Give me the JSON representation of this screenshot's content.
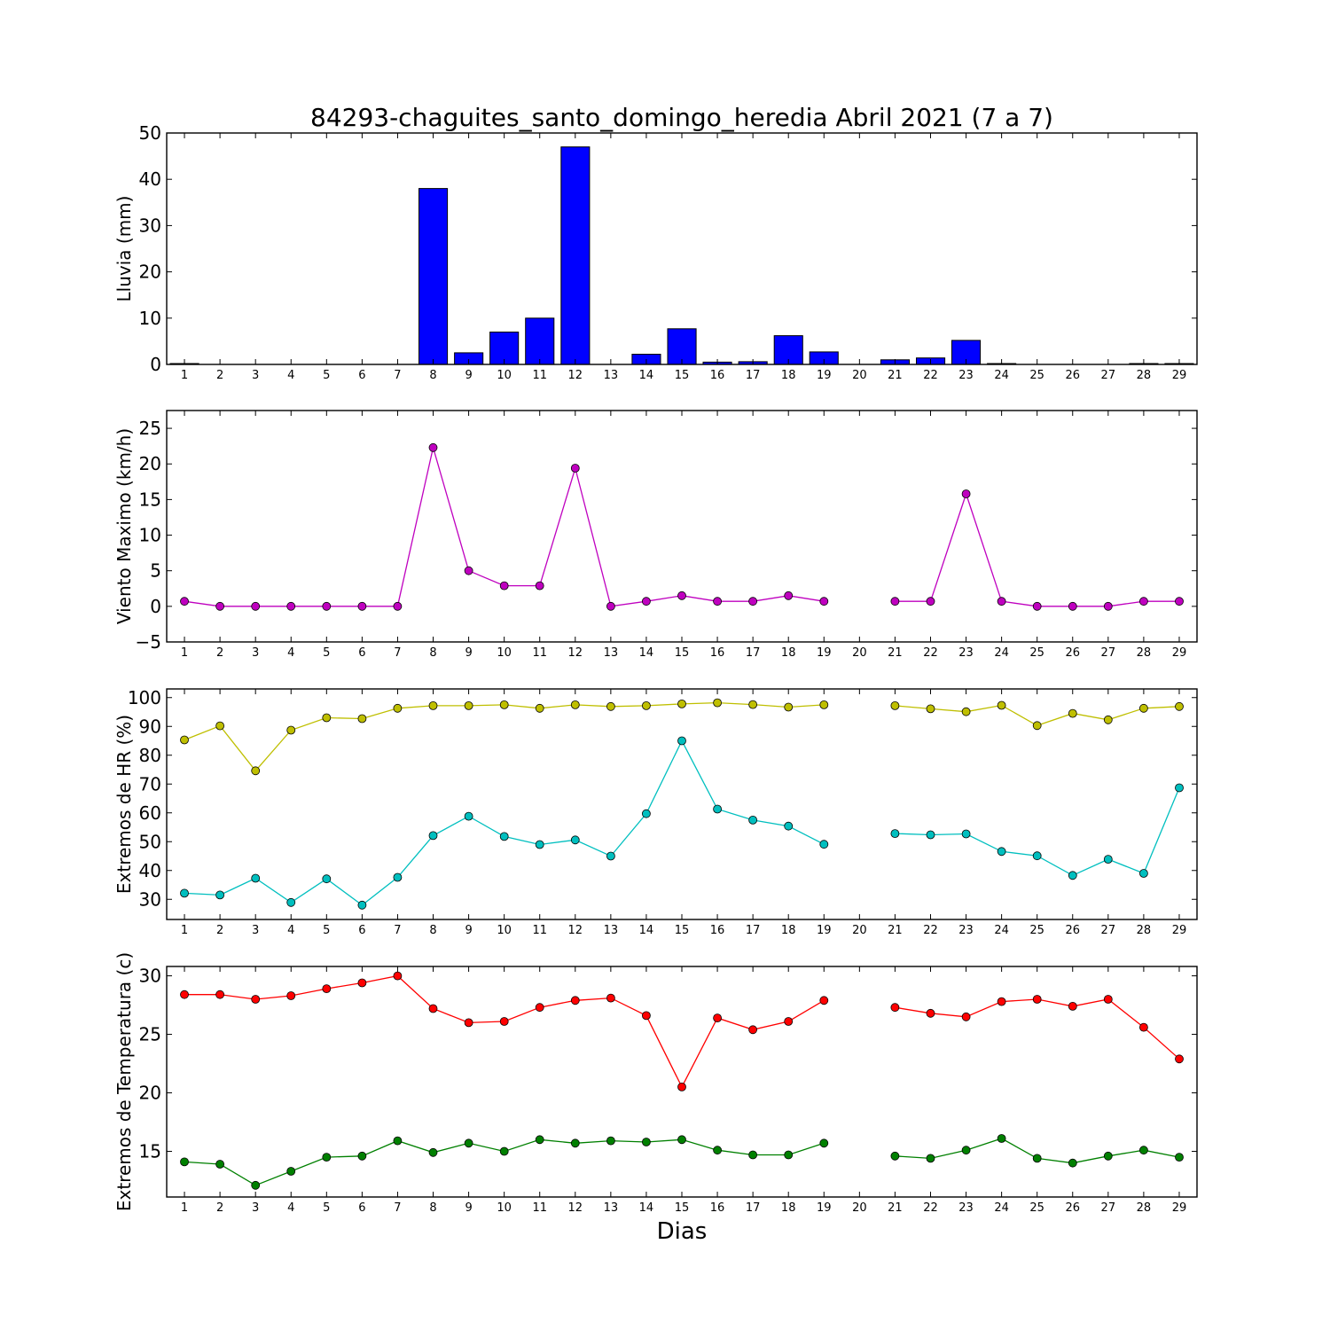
{
  "title": "84293-chaguites_santo_domingo_heredia Abril 2021  (7 a 7)",
  "xlabel": "Dias",
  "chart_data": [
    {
      "type": "bar",
      "ylabel": "Lluvia (mm)",
      "ylim": [
        0,
        50
      ],
      "yticks": [
        0,
        10,
        20,
        30,
        40,
        50
      ],
      "categories": [
        "1",
        "2",
        "3",
        "4",
        "5",
        "6",
        "7",
        "8",
        "9",
        "10",
        "11",
        "12",
        "13",
        "14",
        "15",
        "16",
        "17",
        "18",
        "19",
        "20",
        "21",
        "22",
        "23",
        "24",
        "25",
        "26",
        "27",
        "28",
        "29"
      ],
      "series": [
        {
          "color": "#0000ff",
          "values": [
            0.2,
            0,
            0,
            0,
            0,
            0,
            0,
            38,
            2.5,
            7,
            10,
            47,
            0,
            2.2,
            7.7,
            0.5,
            0.6,
            6.2,
            2.7,
            null,
            1,
            1.4,
            5.2,
            0.2,
            0,
            0,
            0,
            0.2,
            0.2
          ]
        }
      ]
    },
    {
      "type": "line",
      "ylabel": "Viento Maximo (km/h)",
      "ylim": [
        -5,
        27.5
      ],
      "yticks": [
        -5,
        0,
        5,
        10,
        15,
        20,
        25
      ],
      "categories": [
        "1",
        "2",
        "3",
        "4",
        "5",
        "6",
        "7",
        "8",
        "9",
        "10",
        "11",
        "12",
        "13",
        "14",
        "15",
        "16",
        "17",
        "18",
        "19",
        "20",
        "21",
        "22",
        "23",
        "24",
        "25",
        "26",
        "27",
        "28",
        "29"
      ],
      "series": [
        {
          "color": "#bf00bf",
          "values": [
            0.7,
            0,
            0,
            0,
            0,
            0,
            0,
            22.3,
            5,
            2.9,
            2.9,
            19.4,
            0,
            0.7,
            1.5,
            0.7,
            0.7,
            1.5,
            0.7,
            null,
            0.7,
            0.7,
            15.8,
            0.7,
            0,
            0,
            0,
            0.7,
            0.7
          ]
        }
      ]
    },
    {
      "type": "line",
      "ylabel": "Extremos de HR (%)",
      "ylim": [
        23,
        103
      ],
      "yticks": [
        30,
        40,
        50,
        60,
        70,
        80,
        90,
        100
      ],
      "categories": [
        "1",
        "2",
        "3",
        "4",
        "5",
        "6",
        "7",
        "8",
        "9",
        "10",
        "11",
        "12",
        "13",
        "14",
        "15",
        "16",
        "17",
        "18",
        "19",
        "20",
        "21",
        "22",
        "23",
        "24",
        "25",
        "26",
        "27",
        "28",
        "29"
      ],
      "series": [
        {
          "color": "#bfbf00",
          "values": [
            85.3,
            90.2,
            74.6,
            88.7,
            93,
            92.7,
            96.3,
            97.2,
            97.2,
            97.5,
            96.3,
            97.5,
            96.9,
            97.2,
            97.8,
            98.2,
            97.6,
            96.7,
            97.5,
            null,
            97.2,
            96.1,
            95.1,
            97.3,
            90.3,
            94.5,
            92.3,
            96.3,
            96.9
          ]
        },
        {
          "color": "#00bfbf",
          "values": [
            32.1,
            31.5,
            37.3,
            28.9,
            37.1,
            28,
            37.6,
            52.1,
            58.8,
            51.8,
            49,
            50.6,
            45,
            59.7,
            85,
            61.3,
            57.5,
            55.4,
            49.1,
            null,
            52.8,
            52.4,
            52.7,
            46.6,
            45.1,
            38.3,
            43.9,
            39,
            68.7
          ]
        }
      ]
    },
    {
      "type": "line",
      "ylabel": "Extremos de Temperatura (c)",
      "ylim": [
        11.1,
        30.8
      ],
      "yticks": [
        15,
        20,
        25,
        30
      ],
      "categories": [
        "1",
        "2",
        "3",
        "4",
        "5",
        "6",
        "7",
        "8",
        "9",
        "10",
        "11",
        "12",
        "13",
        "14",
        "15",
        "16",
        "17",
        "18",
        "19",
        "20",
        "21",
        "22",
        "23",
        "24",
        "25",
        "26",
        "27",
        "28",
        "29"
      ],
      "series": [
        {
          "color": "#ff0000",
          "values": [
            28.4,
            28.4,
            28,
            28.3,
            28.9,
            29.4,
            30,
            27.2,
            26,
            26.1,
            27.3,
            27.9,
            28.1,
            26.6,
            20.5,
            26.4,
            25.4,
            26.1,
            27.9,
            null,
            27.3,
            26.8,
            26.5,
            27.8,
            28,
            27.4,
            28,
            25.6,
            22.9
          ]
        },
        {
          "color": "#008000",
          "values": [
            14.1,
            13.9,
            12.1,
            13.3,
            14.5,
            14.6,
            15.9,
            14.9,
            15.7,
            15,
            16,
            15.7,
            15.9,
            15.8,
            16,
            15.1,
            14.7,
            14.7,
            15.7,
            null,
            14.6,
            14.4,
            15.1,
            16.1,
            14.4,
            14,
            14.6,
            15.1,
            14.5
          ]
        }
      ]
    }
  ]
}
